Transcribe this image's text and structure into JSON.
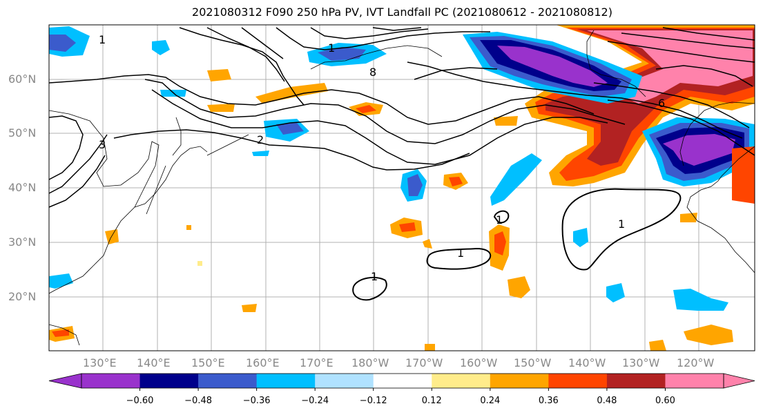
{
  "title": "2021080312 F090 250 hPa PV, IVT Landfall PC (2021080612 - 2021080812)",
  "lat_labels": [
    "60°N",
    "50°N",
    "40°N",
    "30°N",
    "20°N"
  ],
  "lon_labels": [
    "130°E",
    "140°E",
    "150°E",
    "160°E",
    "170°E",
    "180°W",
    "170°W",
    "160°W",
    "150°W",
    "140°W",
    "130°W",
    "120°W"
  ],
  "colorbar": {
    "ticks": [
      "−0.60",
      "−0.48",
      "−0.36",
      "−0.24",
      "−0.12",
      "0.12",
      "0.24",
      "0.36",
      "0.48",
      "0.60"
    ],
    "colors": [
      "#9932cc",
      "#00008b",
      "#3b5bcc",
      "#00bfff",
      "#b0e2ff",
      "#ffffff",
      "#ffec8b",
      "#ffa500",
      "#ff4500",
      "#b22222",
      "#ff82ab"
    ]
  },
  "contour_labels": [
    "1",
    "2",
    "3",
    "8",
    "6",
    "1",
    "1",
    "1",
    "1",
    "1"
  ]
}
